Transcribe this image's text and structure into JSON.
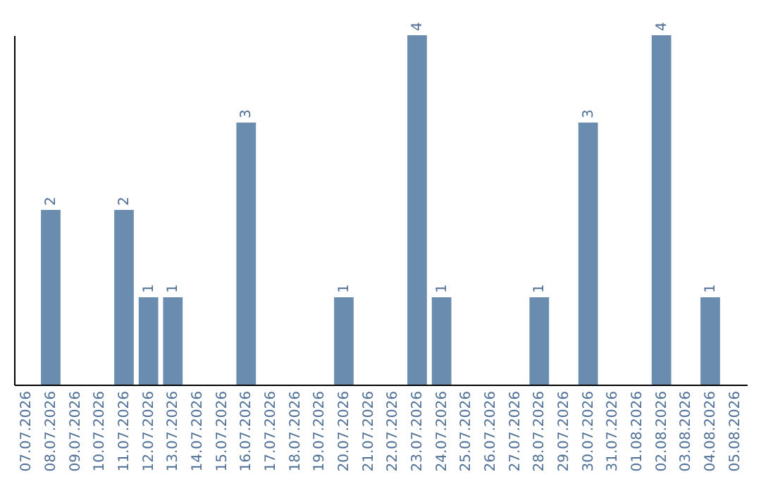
{
  "chart_data": {
    "type": "bar",
    "categories": [
      "07.07.2026",
      "08.07.2026",
      "09.07.2026",
      "10.07.2026",
      "11.07.2026",
      "12.07.2026",
      "13.07.2026",
      "14.07.2026",
      "15.07.2026",
      "16.07.2026",
      "17.07.2026",
      "18.07.2026",
      "19.07.2026",
      "20.07.2026",
      "21.07.2026",
      "22.07.2026",
      "23.07.2026",
      "24.07.2026",
      "25.07.2026",
      "26.07.2026",
      "27.07.2026",
      "28.07.2026",
      "29.07.2026",
      "30.07.2026",
      "31.07.2026",
      "01.08.2026",
      "02.08.2026",
      "03.08.2026",
      "04.08.2026",
      "05.08.2026"
    ],
    "values": [
      null,
      2,
      null,
      null,
      2,
      1,
      1,
      null,
      null,
      3,
      null,
      null,
      null,
      1,
      null,
      null,
      4,
      1,
      null,
      null,
      null,
      1,
      null,
      3,
      null,
      null,
      4,
      null,
      1,
      null
    ],
    "color": "#6a8caf",
    "ylim": [
      0,
      4
    ],
    "data_labels": true,
    "tick_labels": "x"
  }
}
